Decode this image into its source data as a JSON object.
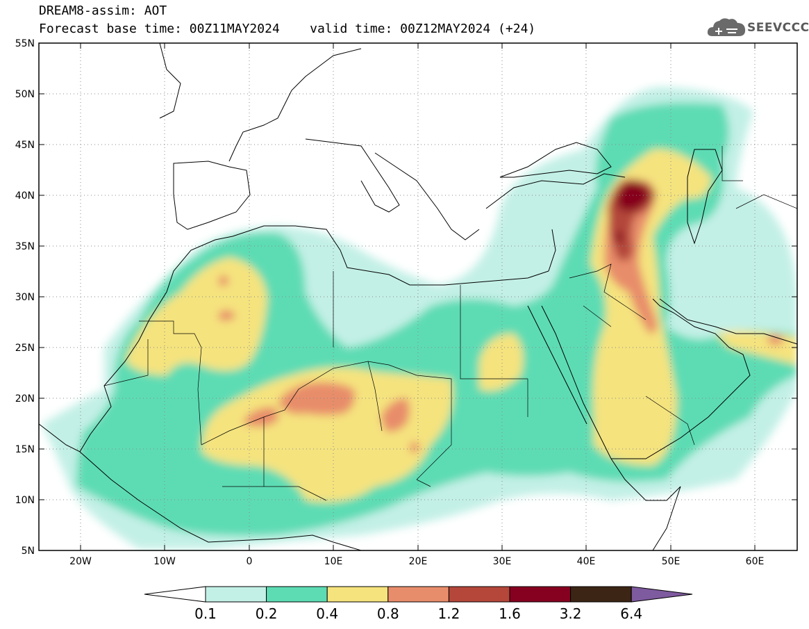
{
  "header": {
    "line1": "DREAM8-assim: AOT",
    "line2": "Forecast base time: 00Z11MAY2024    valid time: 00Z12MAY2024 (+24)"
  },
  "logo": {
    "text": "SEEVCCC",
    "icon": "cloud-icon"
  },
  "map": {
    "lon_range": [
      -25,
      65
    ],
    "lat_range": [
      5,
      55
    ],
    "lat_ticks": [
      "55N",
      "50N",
      "45N",
      "40N",
      "35N",
      "30N",
      "25N",
      "20N",
      "15N",
      "10N",
      "5N"
    ],
    "lon_ticks": [
      "20W",
      "10W",
      "0",
      "10E",
      "20E",
      "30E",
      "40E",
      "50E",
      "60E"
    ],
    "grid": true
  },
  "colorbar": {
    "labels": [
      "0.1",
      "0.2",
      "0.4",
      "0.8",
      "1.2",
      "1.6",
      "3.2",
      "6.4"
    ],
    "colors": [
      "#ffffff",
      "#c3f0e6",
      "#5ddcb4",
      "#f5e37e",
      "#e88d6b",
      "#b4473a",
      "#86001f",
      "#3c2514",
      "#7e5a9f"
    ]
  }
}
